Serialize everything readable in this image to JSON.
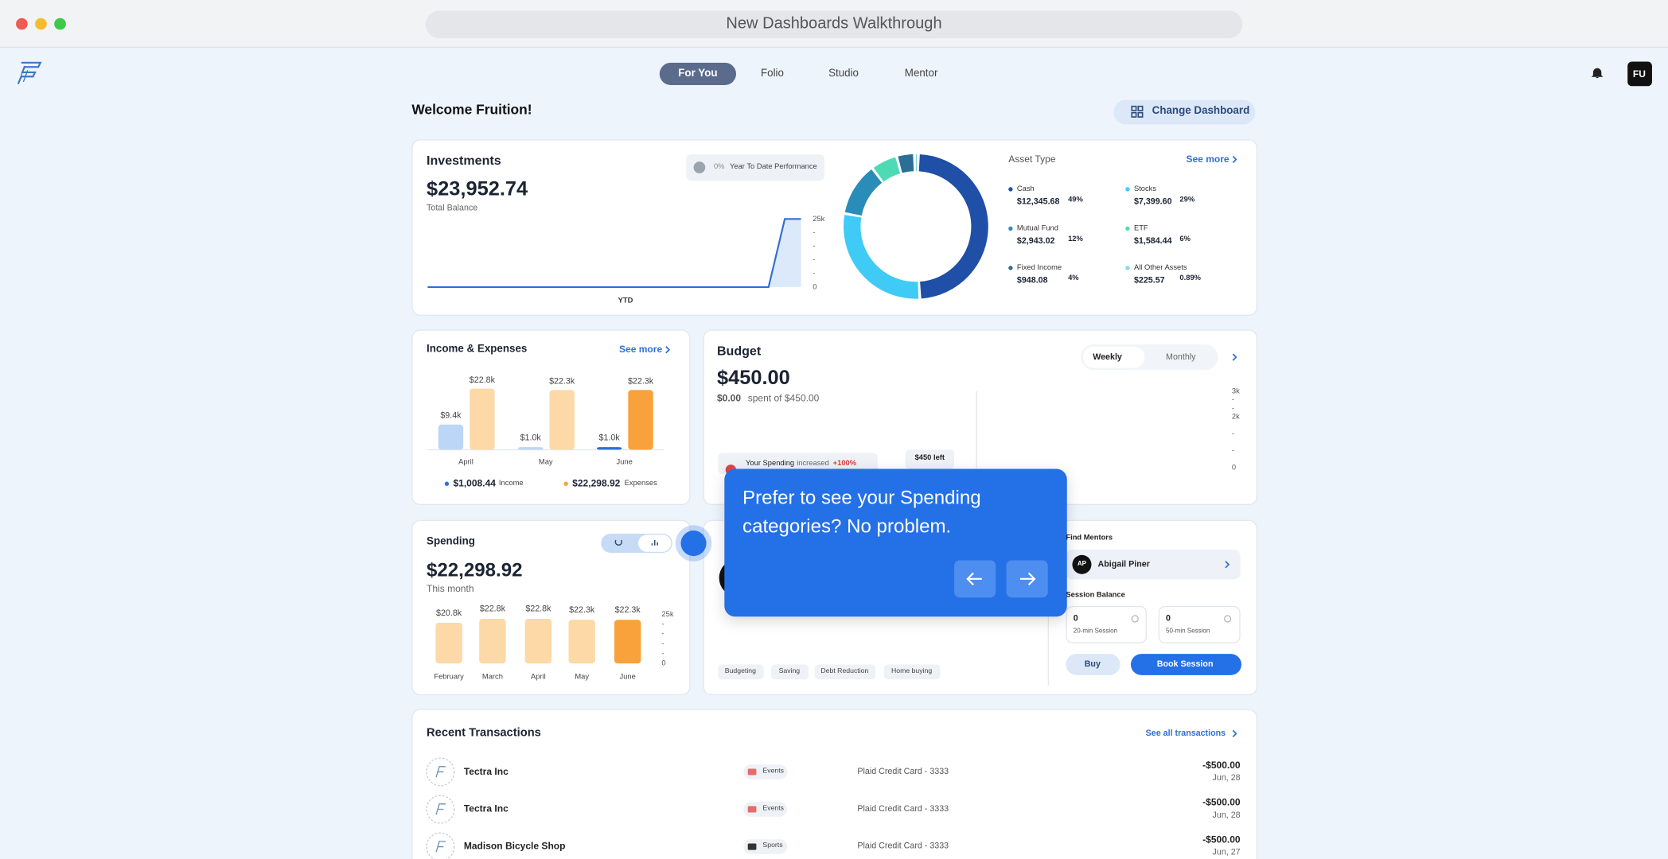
{
  "window": {
    "title": "New Dashboards Walkthrough"
  },
  "nav": {
    "tabs": [
      "For You",
      "Folio",
      "Studio",
      "Mentor"
    ],
    "avatar": "FU"
  },
  "welcome": "Welcome Fruition!",
  "change_dashboard": "Change Dashboard",
  "investments": {
    "title": "Investments",
    "balance": "$23,952.74",
    "balance_label": "Total Balance",
    "ytd_percent": "0%",
    "ytd_label": "Year To Date Performance",
    "chart": {
      "type": "line",
      "x_label": "YTD",
      "color": "#2f6fd6",
      "values": [
        0,
        0,
        0,
        0,
        0,
        0,
        0,
        0,
        0,
        0,
        0,
        0,
        0,
        0,
        0,
        0,
        0,
        0,
        0,
        0,
        0,
        0,
        25,
        25
      ],
      "ylim": [
        0,
        25
      ],
      "yticks": [
        {
          "value": 25,
          "label": "25k"
        },
        {
          "value": 20,
          "label": "-"
        },
        {
          "value": 15,
          "label": "-"
        },
        {
          "value": 10,
          "label": "-"
        },
        {
          "value": 5,
          "label": "-"
        },
        0
      ]
    },
    "asset_title": "Asset Type",
    "see_more": "See more",
    "assets": {
      "type": "pie",
      "categories": [
        "Cash",
        "Stocks",
        "Mutual Fund",
        "ETF",
        "Fixed Income",
        "All Other Assets"
      ],
      "amounts": [
        "$12,345.68",
        "$7,399.60",
        "$2,943.02",
        "$1,584.44",
        "$948.08",
        "$225.57"
      ],
      "values": [
        49,
        29,
        12,
        6,
        4,
        0.89
      ],
      "value_labels": [
        "49%",
        "29%",
        "12%",
        "6%",
        "4%",
        "0.89%"
      ],
      "colors": [
        "#1f4fa6",
        "#3fcbf6",
        "#2a8cb8",
        "#4fdab6",
        "#2b6f96",
        "#86dbe3"
      ]
    }
  },
  "income": {
    "type": "bar",
    "title": "Income & Expenses",
    "see_more": "See more",
    "categories": [
      "April",
      "May",
      "June"
    ],
    "ylim": [
      0,
      25
    ],
    "series": [
      {
        "name": "Income",
        "total": "$1,008.44",
        "color": "#bcd6f7",
        "highlight": "#2a6fdb",
        "values": [
          9.4,
          1.0,
          1.0
        ],
        "value_labels": [
          "$9.4k",
          "$1.0k",
          "$1.0k"
        ]
      },
      {
        "name": "Expenses",
        "total": "$22,298.92",
        "color": "#fcd9a6",
        "highlight": "#f9a13b",
        "values": [
          22.8,
          22.3,
          22.3
        ],
        "value_labels": [
          "$22.8k",
          "$22.3k",
          "$22.3k"
        ]
      }
    ]
  },
  "budget": {
    "title": "Budget",
    "amount": "$450.00",
    "spent": "$0.00",
    "spent_of": "spent of $450.00",
    "tabs": [
      "Weekly",
      "Monthly"
    ],
    "callout": {
      "label": "Your Spending",
      "verb": "increased",
      "change": "+100%"
    },
    "left": "$450 left",
    "chart": {
      "ylim": [
        0,
        3
      ],
      "yticks": [
        {
          "value": 3,
          "label": "3k"
        },
        {
          "value": 2.67,
          "label": "-"
        },
        {
          "value": 2.33,
          "label": "-"
        },
        {
          "value": 2,
          "label": "2k"
        },
        {
          "value": 1.33,
          "label": "-"
        },
        {
          "value": 0.67,
          "label": "-"
        },
        0
      ]
    }
  },
  "spending": {
    "type": "bar",
    "title": "Spending",
    "amount": "$22,298.92",
    "amount_label": "This month",
    "categories": [
      "February",
      "March",
      "April",
      "May",
      "June"
    ],
    "values": [
      20.8,
      22.8,
      22.8,
      22.3,
      22.3
    ],
    "value_labels": [
      "$20.8k",
      "$22.8k",
      "$22.8k",
      "$22.3k",
      "$22.3k"
    ],
    "colors": [
      "#fcd9a6",
      "#fcd9a6",
      "#fcd9a6",
      "#fcd9a6",
      "#f9a13b"
    ],
    "ylim": [
      0,
      25
    ],
    "yticks": [
      {
        "value": 25,
        "label": "25k"
      },
      {
        "value": 20,
        "label": "-"
      },
      {
        "value": 15,
        "label": "-"
      },
      {
        "value": 10,
        "label": "-"
      },
      {
        "value": 5,
        "label": "-"
      },
      0
    ]
  },
  "tooltip": {
    "text": "Prefer to see your Spending categories? No problem."
  },
  "mentors": {
    "title": "Find Mentors",
    "mentor": {
      "initials": "AP",
      "name": "Abigail Piner"
    },
    "session_title": "Session Balance",
    "sessions": [
      {
        "count": "0",
        "label": "20-min Session"
      },
      {
        "count": "0",
        "label": "50-min Session"
      }
    ],
    "buy": "Buy",
    "book": "Book Session"
  },
  "topics": [
    "Budgeting",
    "Saving",
    "Debt Reduction",
    "Home buying"
  ],
  "transactions": {
    "title": "Recent Transactions",
    "see_all": "See all transactions",
    "rows": [
      {
        "name": "Tectra Inc",
        "category": "Events",
        "account": "Plaid Credit Card - 3333",
        "amount": "-$500.00",
        "date": "Jun, 28"
      },
      {
        "name": "Tectra Inc",
        "category": "Events",
        "account": "Plaid Credit Card - 3333",
        "amount": "-$500.00",
        "date": "Jun, 28"
      },
      {
        "name": "Madison Bicycle Shop",
        "category": "Sports",
        "account": "Plaid Credit Card - 3333",
        "amount": "-$500.00",
        "date": "Jun, 27"
      }
    ]
  }
}
